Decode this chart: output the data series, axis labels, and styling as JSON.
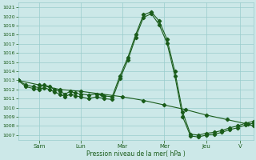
{
  "bg_color": "#cce8e8",
  "grid_color": "#99cccc",
  "line_color": "#1a5c1a",
  "ylim": [
    1006.5,
    1021.5
  ],
  "yticks": [
    1007,
    1008,
    1009,
    1010,
    1011,
    1012,
    1013,
    1014,
    1015,
    1016,
    1017,
    1018,
    1019,
    1020,
    1021
  ],
  "xlabel": "Pression niveau de la mer( hPa )",
  "day_labels": [
    "Sam",
    "Lun",
    "Mar",
    "Mer",
    "Jeu",
    "V"
  ],
  "day_x": [
    16,
    48,
    80,
    112,
    144,
    170
  ],
  "xlim": [
    0,
    180
  ],
  "series1_x": [
    0,
    6,
    12,
    16,
    20,
    24,
    28,
    32,
    36,
    40,
    44,
    48,
    54,
    60,
    66,
    72,
    78,
    84,
    90,
    96,
    102,
    108,
    114,
    120,
    126,
    132,
    138,
    144,
    150,
    156,
    162,
    168,
    174,
    180
  ],
  "series1_y": [
    1013.0,
    1012.5,
    1012.3,
    1012.2,
    1012.5,
    1012.3,
    1012.0,
    1011.8,
    1011.5,
    1011.8,
    1011.6,
    1011.5,
    1011.4,
    1011.5,
    1011.3,
    1011.2,
    1013.5,
    1015.5,
    1018.0,
    1020.2,
    1020.5,
    1019.5,
    1017.5,
    1014.0,
    1009.5,
    1007.1,
    1007.0,
    1007.2,
    1007.3,
    1007.5,
    1007.8,
    1008.0,
    1008.3,
    1008.5
  ],
  "series2_x": [
    0,
    6,
    12,
    16,
    20,
    24,
    28,
    32,
    36,
    40,
    44,
    48,
    54,
    60,
    66,
    72,
    78,
    84,
    90,
    96,
    102,
    108,
    114,
    120,
    126,
    132,
    138,
    144,
    150,
    156,
    162,
    168,
    174,
    180
  ],
  "series2_y": [
    1013.0,
    1012.3,
    1012.1,
    1012.0,
    1012.2,
    1012.0,
    1011.7,
    1011.5,
    1011.2,
    1011.5,
    1011.3,
    1011.2,
    1011.0,
    1011.2,
    1011.0,
    1010.9,
    1013.2,
    1015.2,
    1017.7,
    1019.9,
    1020.3,
    1019.1,
    1017.1,
    1013.5,
    1009.0,
    1006.9,
    1006.8,
    1007.0,
    1007.1,
    1007.3,
    1007.6,
    1007.8,
    1008.1,
    1008.3
  ],
  "series3_x": [
    0,
    16,
    32,
    48,
    64,
    80,
    96,
    112,
    128,
    144,
    160,
    176,
    180
  ],
  "series3_y": [
    1013.0,
    1012.5,
    1012.0,
    1011.8,
    1011.5,
    1011.2,
    1010.8,
    1010.3,
    1009.8,
    1009.2,
    1008.7,
    1008.2,
    1008.0
  ]
}
